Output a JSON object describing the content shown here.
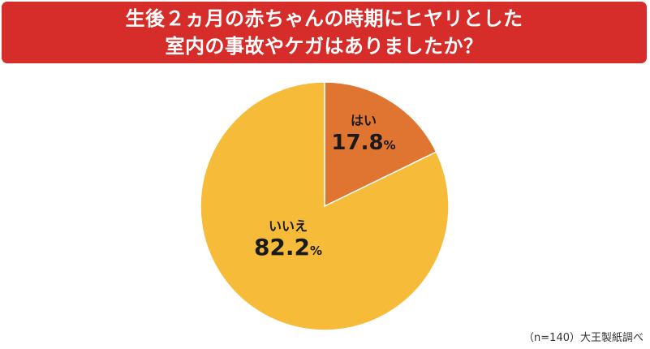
{
  "title": {
    "line1": "生後２ヵ月の赤ちゃんの時期にヒヤリとした",
    "line2": "室内の事故やケガはありましたか？"
  },
  "chart_data": {
    "type": "pie",
    "slices": [
      {
        "label": "はい",
        "value": 17.8,
        "value_text": "17.8",
        "unit": "%",
        "color": "#e07431"
      },
      {
        "label": "いいえ",
        "value": 82.2,
        "value_text": "82.2",
        "unit": "%",
        "color": "#f7bb3a"
      }
    ],
    "start_angle": "12 o'clock",
    "direction": "clockwise",
    "legend": "none"
  },
  "footnote": "（n=140）大王製紙調べ",
  "colors": {
    "banner": "#d72d2a",
    "slice_border": "#ffffff"
  }
}
